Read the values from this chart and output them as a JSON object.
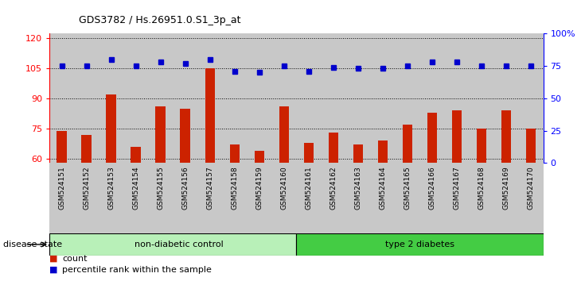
{
  "title": "GDS3782 / Hs.26951.0.S1_3p_at",
  "samples": [
    "GSM524151",
    "GSM524152",
    "GSM524153",
    "GSM524154",
    "GSM524155",
    "GSM524156",
    "GSM524157",
    "GSM524158",
    "GSM524159",
    "GSM524160",
    "GSM524161",
    "GSM524162",
    "GSM524163",
    "GSM524164",
    "GSM524165",
    "GSM524166",
    "GSM524167",
    "GSM524168",
    "GSM524169",
    "GSM524170"
  ],
  "counts": [
    74,
    72,
    92,
    66,
    86,
    85,
    105,
    67,
    64,
    86,
    68,
    73,
    67,
    69,
    77,
    83,
    84,
    75,
    84,
    75
  ],
  "percentile": [
    75,
    75,
    80,
    75,
    78,
    77,
    80,
    71,
    70,
    75,
    71,
    74,
    73,
    73,
    75,
    78,
    78,
    75,
    75,
    75
  ],
  "ylim_left": [
    58,
    122
  ],
  "ylim_right": [
    0,
    100
  ],
  "yticks_left": [
    60,
    75,
    90,
    105,
    120
  ],
  "yticks_right": [
    0,
    25,
    50,
    75,
    100
  ],
  "ytick_labels_right": [
    "0",
    "25",
    "50",
    "75",
    "100%"
  ],
  "group1_label": "non-diabetic control",
  "group2_label": "type 2 diabetes",
  "group1_count": 10,
  "bar_color": "#cc2200",
  "dot_color": "#0000cc",
  "col_bg_color": "#c8c8c8",
  "group1_color": "#b8f0b8",
  "group2_color": "#44cc44",
  "legend_count_label": "count",
  "legend_pct_label": "percentile rank within the sample",
  "disease_state_label": "disease state"
}
